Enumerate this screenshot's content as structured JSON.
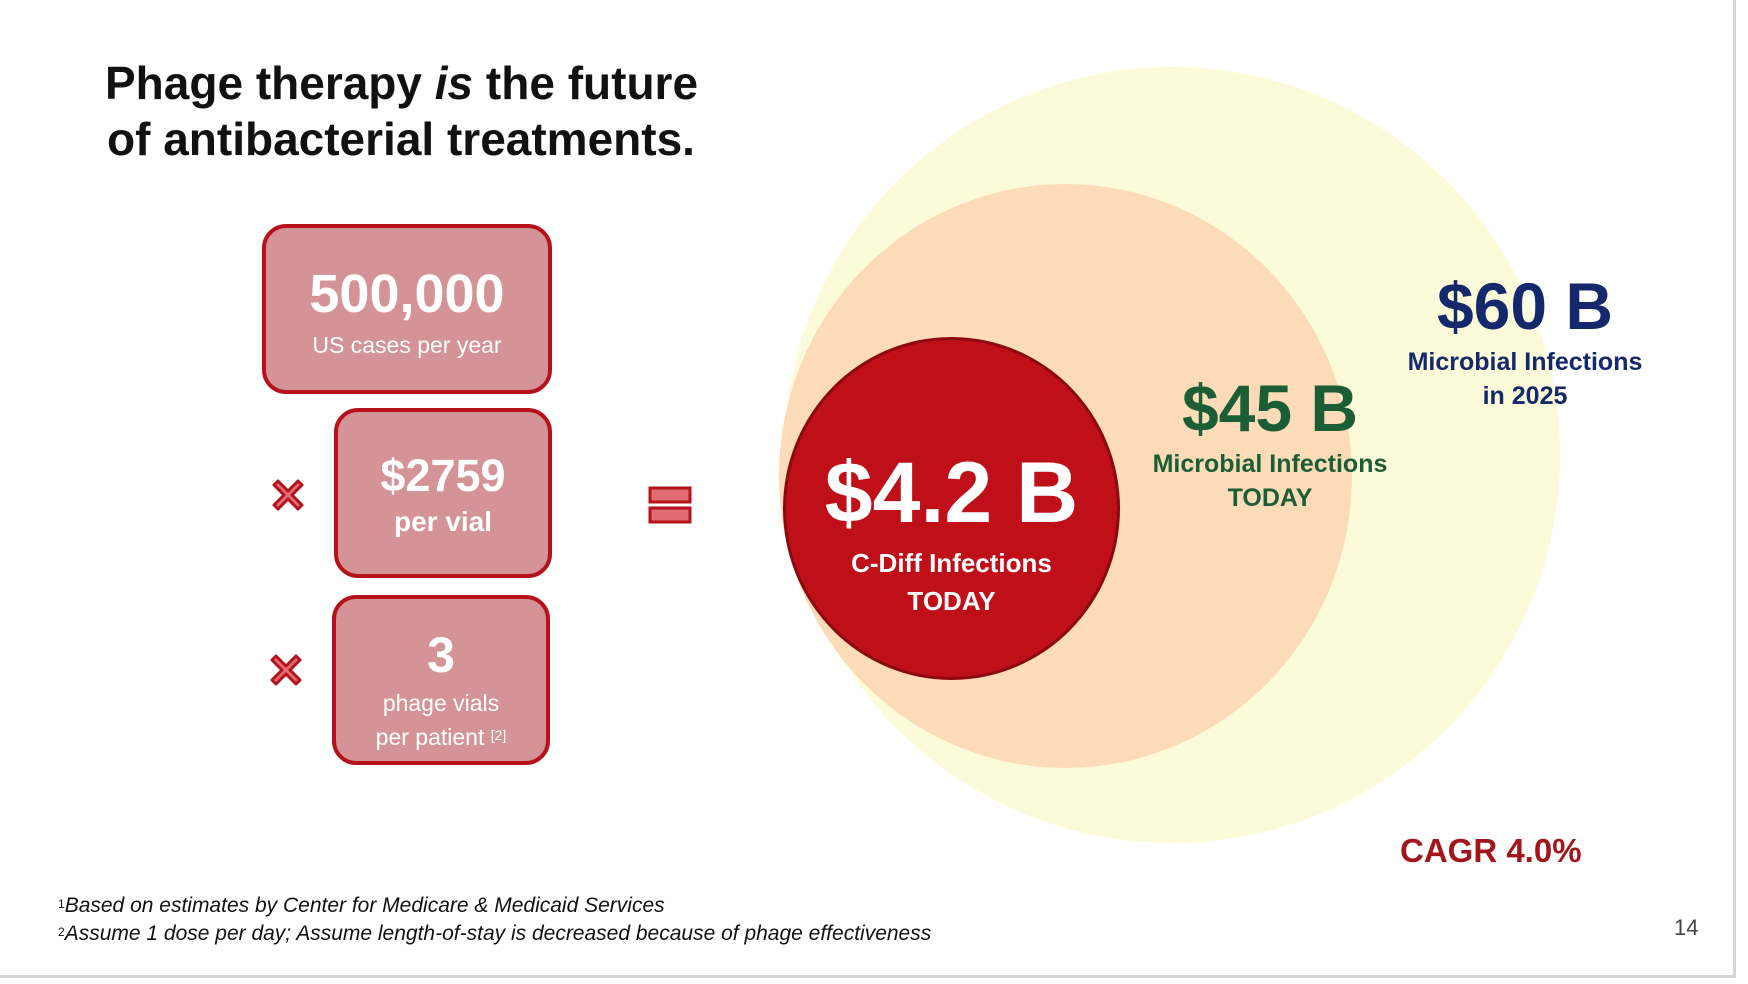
{
  "title": {
    "line1_pre": "Phage therapy ",
    "line1_em": "is",
    "line1_post": " the future",
    "line2": "of antibacterial treatments."
  },
  "boxes": {
    "cases": {
      "value": "500,000",
      "label": "US cases per year"
    },
    "price": {
      "value": "$2759",
      "label": "per vial"
    },
    "vials": {
      "value": "3",
      "label_line1": "phage vials",
      "label_line2": "per patient",
      "ref": "[2]"
    }
  },
  "circles": {
    "inner": {
      "value": "$4.2 B",
      "label_line1": "C-Diff Infections",
      "label_line2": "TODAY",
      "color": "#bf0f19"
    },
    "middle": {
      "value": "$45 B",
      "label_line1": "Microbial Infections",
      "label_line2": "TODAY",
      "color": "#fcdcb8",
      "text_color": "#1b5e35"
    },
    "outer": {
      "value": "$60 B",
      "label_line1": "Microbial Infections",
      "label_line2": "in 2025",
      "color": "#fcfbd9",
      "text_color": "#14286b"
    }
  },
  "cagr": "CAGR 4.0%",
  "footnotes": [
    {
      "mark": "1",
      "text": "Based on estimates by Center for Medicare & Medicaid Services"
    },
    {
      "mark": "2",
      "text": "Assume 1 dose per day; Assume length-of-stay is decreased because of phage effectiveness"
    }
  ],
  "page_number": "14",
  "icons": {
    "multiply": "times-icon",
    "equals": "equals-icon"
  },
  "colors": {
    "box_fill": "#d49396",
    "box_border": "#b5121b",
    "cagr": "#a3151c"
  }
}
